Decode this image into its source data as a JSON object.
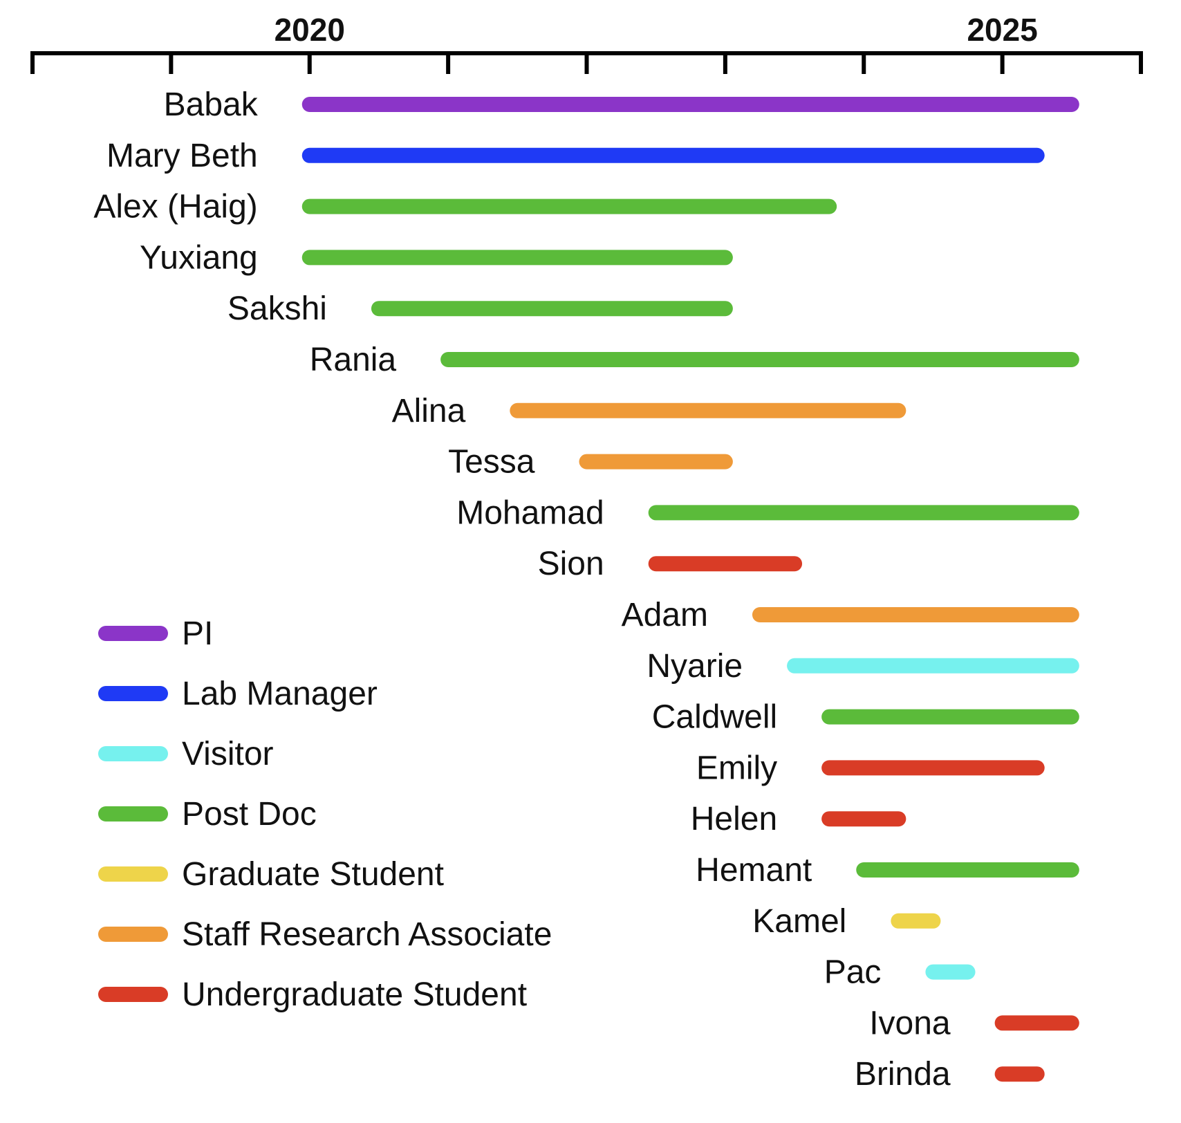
{
  "chart_data": {
    "type": "gantt",
    "title": "",
    "x_unit": "year",
    "xlim": [
      2018,
      2026
    ],
    "x_ticks": [
      2018,
      2019,
      2020,
      2021,
      2022,
      2023,
      2024,
      2025,
      2026
    ],
    "x_tick_labels": [
      {
        "value": 2020,
        "label": "2020"
      },
      {
        "value": 2025,
        "label": "2025"
      }
    ],
    "categories": [
      {
        "role": "PI",
        "color": "#8b35c8"
      },
      {
        "role": "Lab Manager",
        "color": "#1f3af5"
      },
      {
        "role": "Visitor",
        "color": "#76f1ee"
      },
      {
        "role": "Post Doc",
        "color": "#5bbb3a"
      },
      {
        "role": "Graduate Student",
        "color": "#eed44a"
      },
      {
        "role": "Staff Research Associate",
        "color": "#ef9a38"
      },
      {
        "role": "Undergraduate Student",
        "color": "#d93c26"
      }
    ],
    "series": [
      {
        "name": "Babak",
        "role": "PI",
        "start": 2020.0,
        "end": 2025.5
      },
      {
        "name": "Mary Beth",
        "role": "Lab Manager",
        "start": 2020.0,
        "end": 2025.25
      },
      {
        "name": "Alex (Haig)",
        "role": "Post Doc",
        "start": 2020.0,
        "end": 2023.75
      },
      {
        "name": "Yuxiang",
        "role": "Post Doc",
        "start": 2020.0,
        "end": 2023.0
      },
      {
        "name": "Sakshi",
        "role": "Post Doc",
        "start": 2020.5,
        "end": 2023.0
      },
      {
        "name": "Rania",
        "role": "Post Doc",
        "start": 2021.0,
        "end": 2025.5
      },
      {
        "name": "Alina",
        "role": "Staff Research Associate",
        "start": 2021.5,
        "end": 2024.25
      },
      {
        "name": "Tessa",
        "role": "Staff Research Associate",
        "start": 2022.0,
        "end": 2023.0
      },
      {
        "name": "Mohamad",
        "role": "Post Doc",
        "start": 2022.5,
        "end": 2025.5
      },
      {
        "name": "Sion",
        "role": "Undergraduate Student",
        "start": 2022.5,
        "end": 2023.5
      },
      {
        "name": "Adam",
        "role": "Staff Research Associate",
        "start": 2023.25,
        "end": 2025.5
      },
      {
        "name": "Nyarie",
        "role": "Visitor",
        "start": 2023.5,
        "end": 2025.5
      },
      {
        "name": "Caldwell",
        "role": "Post Doc",
        "start": 2023.75,
        "end": 2025.5
      },
      {
        "name": "Emily",
        "role": "Undergraduate Student",
        "start": 2023.75,
        "end": 2025.25
      },
      {
        "name": "Helen",
        "role": "Undergraduate Student",
        "start": 2023.75,
        "end": 2024.25
      },
      {
        "name": "Hemant",
        "role": "Post Doc",
        "start": 2024.0,
        "end": 2025.5
      },
      {
        "name": "Kamel",
        "role": "Graduate Student",
        "start": 2024.25,
        "end": 2024.5
      },
      {
        "name": "Pac",
        "role": "Visitor",
        "start": 2024.5,
        "end": 2024.75
      },
      {
        "name": "Ivona",
        "role": "Undergraduate Student",
        "start": 2025.0,
        "end": 2025.5
      },
      {
        "name": "Brinda",
        "role": "Undergraduate Student",
        "start": 2025.0,
        "end": 2025.25
      }
    ],
    "legend": [
      "PI",
      "Lab Manager",
      "Visitor",
      "Post Doc",
      "Graduate Student",
      "Staff Research Associate",
      "Undergraduate Student"
    ],
    "legend_position": "left",
    "grid": false
  }
}
